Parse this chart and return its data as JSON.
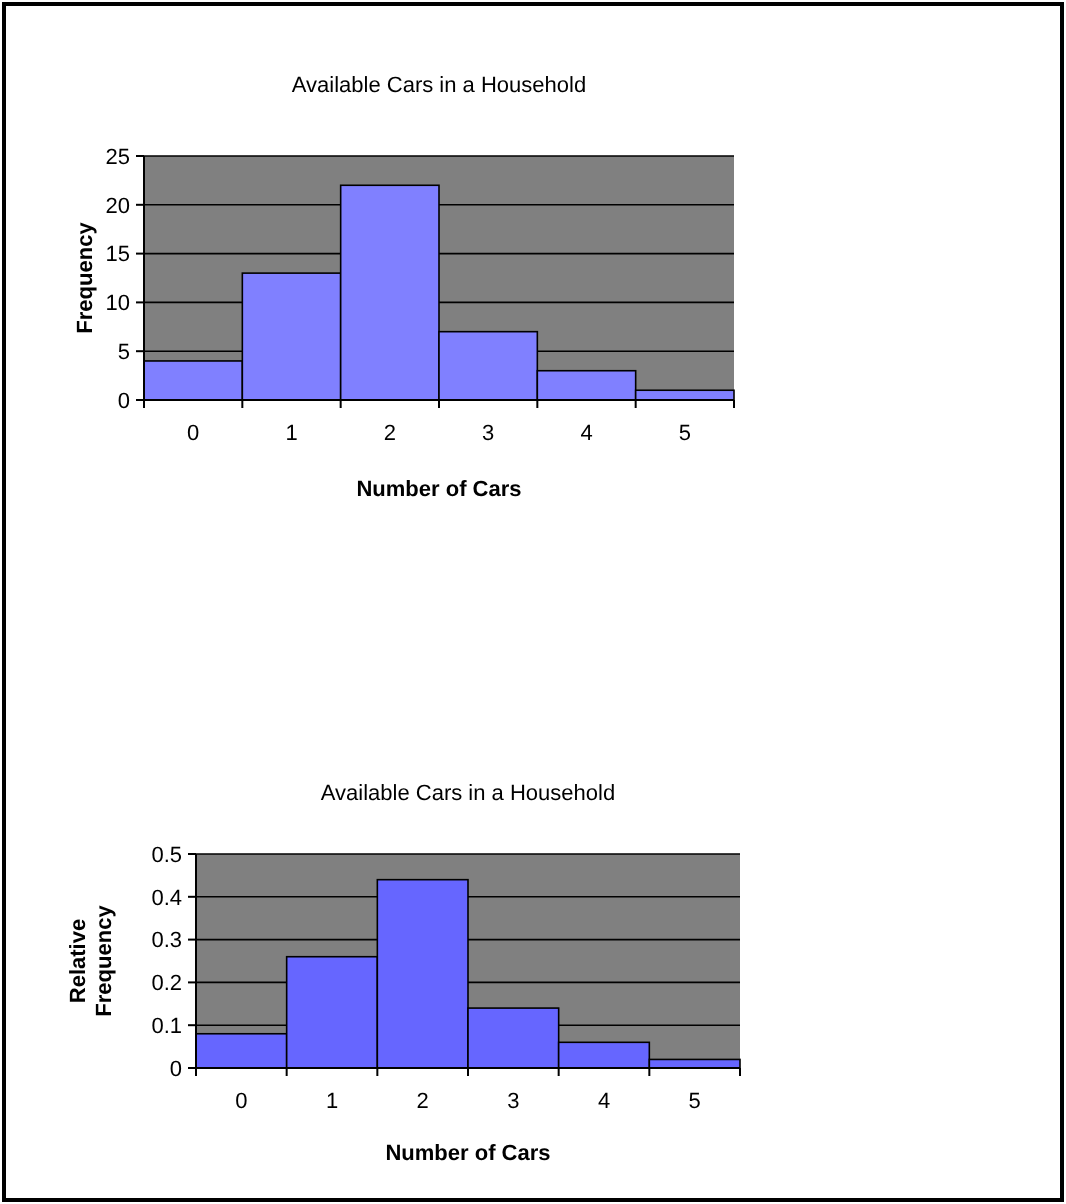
{
  "chart_data": [
    {
      "type": "bar",
      "title": "Available Cars in a Household",
      "xlabel": "Number of Cars",
      "ylabel": "Frequency",
      "categories": [
        "0",
        "1",
        "2",
        "3",
        "4",
        "5"
      ],
      "values": [
        4,
        13,
        22,
        7,
        3,
        1
      ],
      "color": "#8080ff",
      "ylim": [
        0,
        25
      ],
      "yticks": [
        0,
        5,
        10,
        15,
        20,
        25
      ],
      "grid": "y"
    },
    {
      "type": "bar",
      "title": "Available Cars in a Household",
      "xlabel": "Number of Cars",
      "ylabel": "Relative Frequency",
      "categories": [
        "0",
        "1",
        "2",
        "3",
        "4",
        "5"
      ],
      "values": [
        0.08,
        0.26,
        0.44,
        0.14,
        0.06,
        0.02
      ],
      "color": "#6666ff",
      "ylim": [
        0,
        0.5
      ],
      "yticks": [
        0,
        0.1,
        0.2,
        0.3,
        0.4,
        0.5
      ],
      "grid": "y"
    }
  ]
}
